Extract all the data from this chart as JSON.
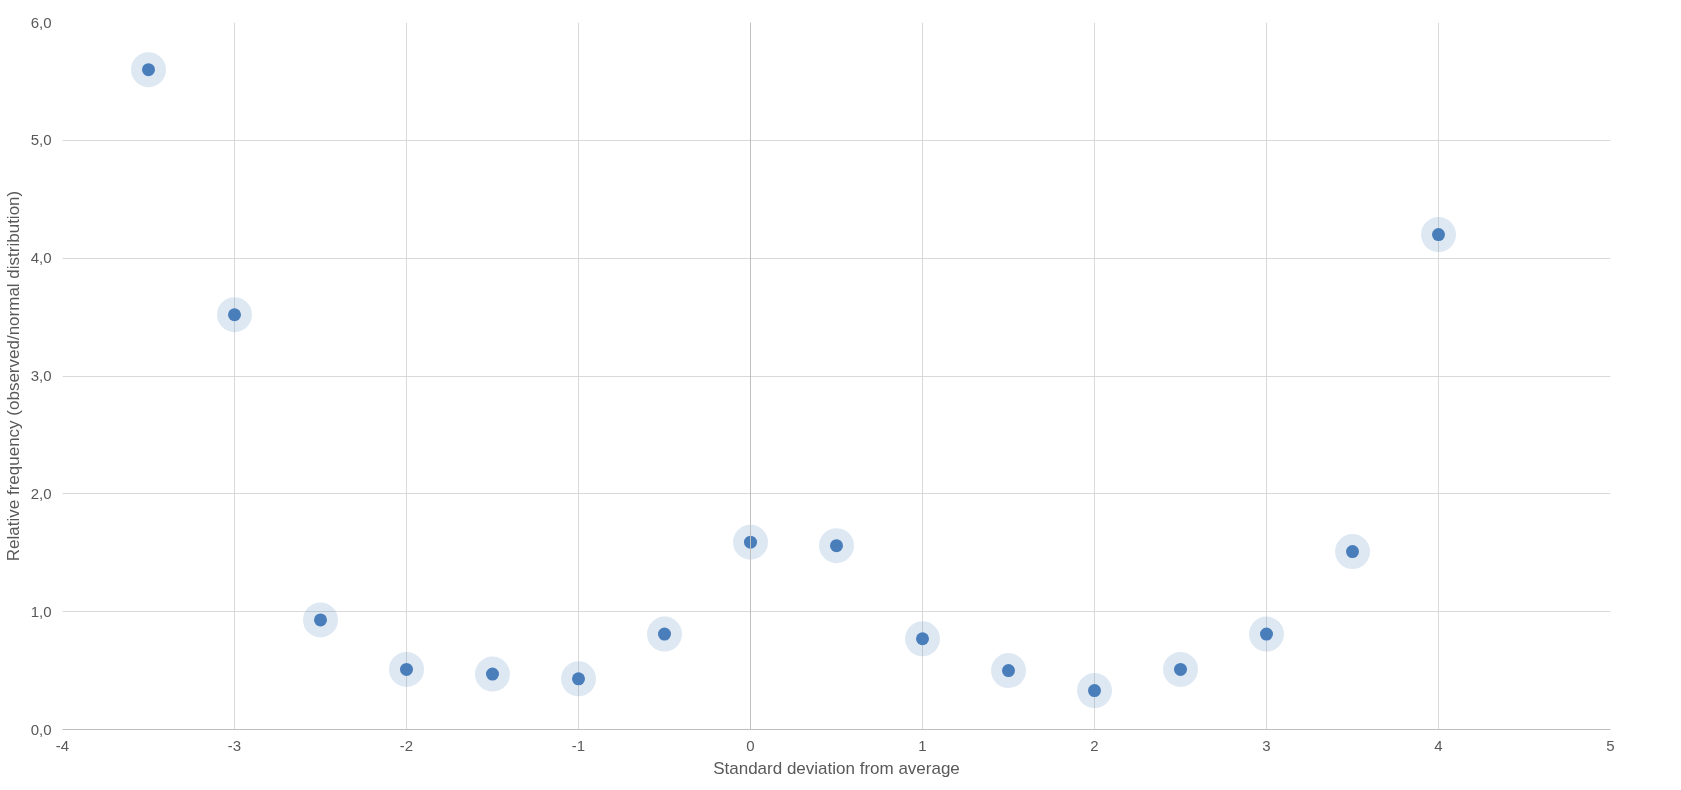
{
  "chart_data": {
    "type": "scatter",
    "xlabel": "Standard deviation from average",
    "ylabel": "Relative frequency (observed/normal distribution)",
    "x": [
      -3.5,
      -3,
      -2.5,
      -2,
      -1.5,
      -1,
      -0.5,
      0,
      0.5,
      1,
      1.5,
      2,
      2.5,
      3,
      3.5,
      4
    ],
    "series": [
      {
        "color": "#4a7ebb",
        "values": [
          5.6,
          3.52,
          0.93,
          0.51,
          0.47,
          0.43,
          0.81,
          1.59,
          1.56,
          0.77,
          0.5,
          0.33,
          0.51,
          0.81,
          1.51,
          4.2
        ]
      }
    ],
    "xlim": [
      -4,
      5
    ],
    "xticks": [
      -4,
      -3,
      -2,
      -1,
      0,
      1,
      2,
      3,
      4,
      5
    ],
    "ylim": [
      0,
      6
    ],
    "yticks": [
      {
        "value": 0,
        "label": "0,0"
      },
      {
        "value": 1,
        "label": "1,0"
      },
      {
        "value": 2,
        "label": "2,0"
      },
      {
        "value": 3,
        "label": "3,0"
      },
      {
        "value": 4,
        "label": "4,0"
      },
      {
        "value": 5,
        "label": "5,0"
      },
      {
        "value": 6,
        "label": "6,0"
      }
    ],
    "grid": true,
    "marker": "circle"
  }
}
